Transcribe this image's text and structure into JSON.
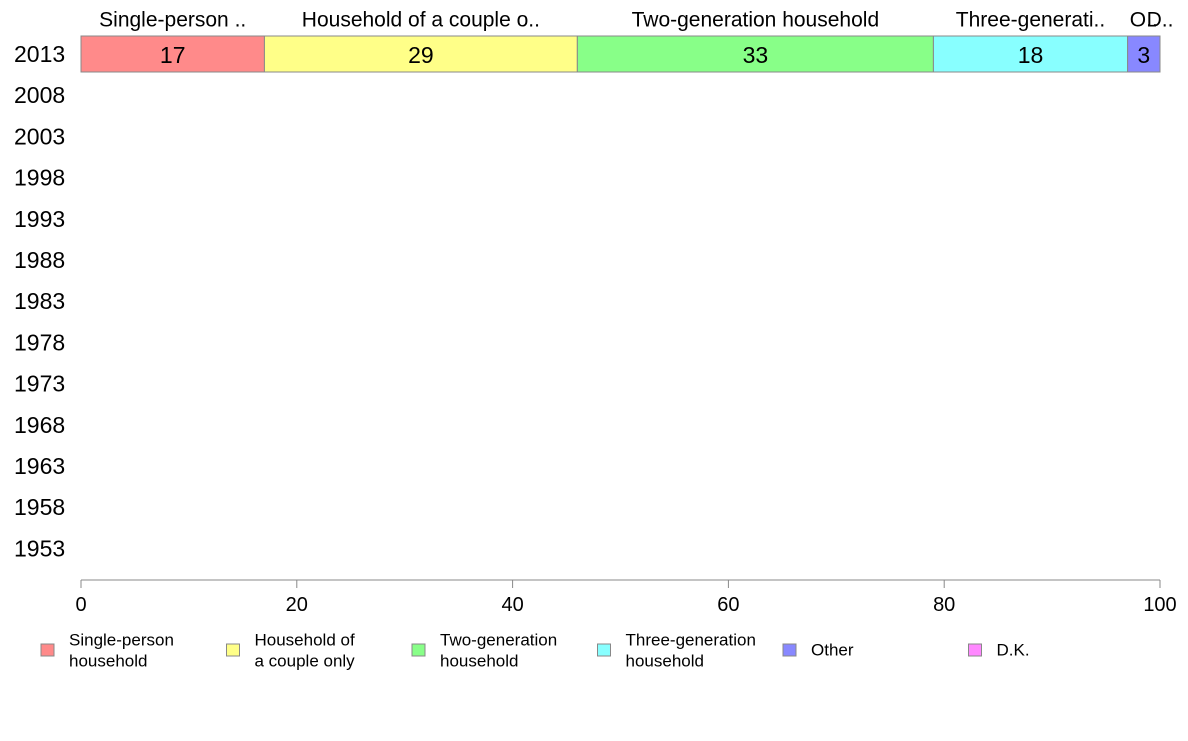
{
  "chart_data": {
    "type": "bar",
    "orientation": "horizontal",
    "stacked": true,
    "categories": [
      "2013",
      "2008",
      "2003",
      "1998",
      "1993",
      "1988",
      "1983",
      "1978",
      "1973",
      "1968",
      "1963",
      "1958",
      "1953"
    ],
    "series": [
      {
        "name": "Single-person household",
        "top_label": "Single-person ..",
        "legend": [
          "Single-person",
          "household"
        ],
        "color": "#ff8a8a",
        "values": [
          17,
          null,
          null,
          null,
          null,
          null,
          null,
          null,
          null,
          null,
          null,
          null,
          null
        ]
      },
      {
        "name": "Household of a couple only",
        "top_label": "Household of a couple o..",
        "legend": [
          "Household of",
          "a couple only"
        ],
        "color": "#ffff88",
        "values": [
          29,
          null,
          null,
          null,
          null,
          null,
          null,
          null,
          null,
          null,
          null,
          null,
          null
        ]
      },
      {
        "name": "Two-generation household",
        "top_label": "Two-generation household",
        "legend": [
          "Two-generation",
          "household"
        ],
        "color": "#88ff88",
        "values": [
          33,
          null,
          null,
          null,
          null,
          null,
          null,
          null,
          null,
          null,
          null,
          null,
          null
        ]
      },
      {
        "name": "Three-generation household",
        "top_label": "Three-generati..",
        "legend": [
          "Three-generation",
          "household"
        ],
        "color": "#88ffff",
        "values": [
          18,
          null,
          null,
          null,
          null,
          null,
          null,
          null,
          null,
          null,
          null,
          null,
          null
        ]
      },
      {
        "name": "Other",
        "top_label": "O..",
        "legend": [
          "Other"
        ],
        "color": "#8888ff",
        "values": [
          3,
          null,
          null,
          null,
          null,
          null,
          null,
          null,
          null,
          null,
          null,
          null,
          null
        ]
      },
      {
        "name": "D.K.",
        "top_label": "D..",
        "legend": [
          "D.K."
        ],
        "color": "#ff88ff",
        "values": [
          0,
          null,
          null,
          null,
          null,
          null,
          null,
          null,
          null,
          null,
          null,
          null,
          null
        ]
      }
    ],
    "xlim": [
      0,
      100
    ],
    "xticks": [
      0,
      20,
      40,
      60,
      80,
      100
    ],
    "title": "",
    "xlabel": "",
    "ylabel": "",
    "grid": false,
    "legend_position": "bottom"
  }
}
